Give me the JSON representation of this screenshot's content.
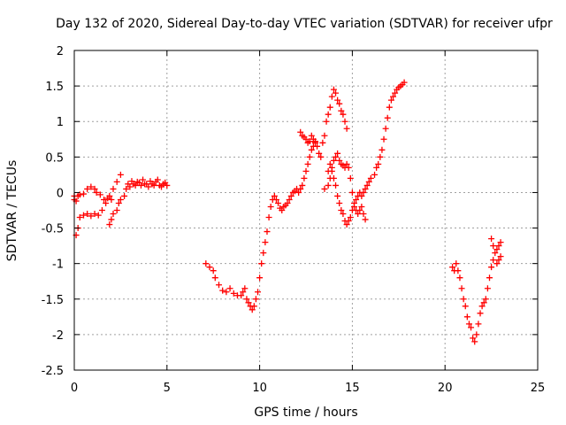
{
  "chart_data": {
    "type": "scatter",
    "title": "Day 132 of 2020, Sidereal Day-to-day VTEC variation (SDTVAR) for receiver ufpr",
    "xlabel": "GPS time / hours",
    "ylabel": "SDTVAR / TECUs",
    "xlim": [
      0,
      25
    ],
    "ylim": [
      -2.5,
      2
    ],
    "xticks": [
      "0",
      "5",
      "10",
      "15",
      "20",
      "25"
    ],
    "yticks": [
      "-2.5",
      "-2",
      "-1.5",
      "-1",
      "-0.5",
      "0",
      "0.5",
      "1",
      "1.5",
      "2"
    ],
    "grid": true,
    "marker": "plus",
    "color": "#ff0000",
    "series": [
      {
        "points": [
          [
            0.0,
            -0.1
          ],
          [
            0.1,
            -0.6
          ],
          [
            0.2,
            -0.5
          ],
          [
            0.3,
            -0.35
          ],
          [
            0.5,
            -0.32
          ],
          [
            0.7,
            -0.3
          ],
          [
            0.9,
            -0.33
          ],
          [
            1.1,
            -0.3
          ],
          [
            1.3,
            -0.32
          ],
          [
            1.5,
            -0.25
          ],
          [
            1.7,
            -0.15
          ],
          [
            1.9,
            -0.05
          ],
          [
            2.1,
            0.05
          ],
          [
            2.3,
            0.15
          ],
          [
            2.5,
            0.25
          ],
          [
            0.0,
            -0.05
          ],
          [
            0.1,
            -0.12
          ],
          [
            0.2,
            -0.05
          ],
          [
            0.3,
            -0.03
          ],
          [
            0.5,
            -0.02
          ],
          [
            0.7,
            0.05
          ],
          [
            0.9,
            0.08
          ],
          [
            1.1,
            0.05
          ],
          [
            1.2,
            0.0
          ],
          [
            1.4,
            -0.03
          ],
          [
            1.6,
            -0.1
          ],
          [
            1.8,
            -0.08
          ],
          [
            2.0,
            -0.1
          ],
          [
            1.9,
            -0.45
          ],
          [
            2.0,
            -0.38
          ],
          [
            2.1,
            -0.3
          ],
          [
            2.3,
            -0.25
          ],
          [
            2.4,
            -0.15
          ],
          [
            2.5,
            -0.1
          ],
          [
            2.7,
            -0.05
          ],
          [
            2.8,
            0.05
          ],
          [
            3.0,
            0.08
          ],
          [
            3.2,
            0.12
          ],
          [
            3.4,
            0.15
          ],
          [
            3.6,
            0.1
          ],
          [
            3.8,
            0.12
          ],
          [
            4.0,
            0.08
          ],
          [
            4.2,
            0.12
          ],
          [
            4.4,
            0.15
          ],
          [
            4.6,
            0.1
          ],
          [
            4.8,
            0.12
          ],
          [
            5.0,
            0.1
          ],
          [
            2.9,
            0.12
          ],
          [
            3.1,
            0.16
          ],
          [
            3.3,
            0.1
          ],
          [
            3.5,
            0.14
          ],
          [
            3.7,
            0.18
          ],
          [
            3.9,
            0.12
          ],
          [
            4.1,
            0.16
          ],
          [
            4.3,
            0.1
          ],
          [
            4.5,
            0.18
          ],
          [
            4.7,
            0.08
          ],
          [
            4.9,
            0.14
          ],
          [
            7.1,
            -1.0
          ],
          [
            7.3,
            -1.05
          ],
          [
            7.5,
            -1.1
          ],
          [
            7.6,
            -1.2
          ],
          [
            7.8,
            -1.3
          ],
          [
            8.0,
            -1.38
          ],
          [
            8.2,
            -1.4
          ],
          [
            8.4,
            -1.35
          ],
          [
            8.6,
            -1.42
          ],
          [
            8.8,
            -1.45
          ],
          [
            9.0,
            -1.45
          ],
          [
            9.1,
            -1.4
          ],
          [
            9.2,
            -1.35
          ],
          [
            9.3,
            -1.5
          ],
          [
            9.4,
            -1.55
          ],
          [
            9.5,
            -1.6
          ],
          [
            9.6,
            -1.65
          ],
          [
            9.7,
            -1.6
          ],
          [
            9.8,
            -1.5
          ],
          [
            9.9,
            -1.4
          ],
          [
            10.0,
            -1.2
          ],
          [
            10.1,
            -1.0
          ],
          [
            10.2,
            -0.85
          ],
          [
            10.3,
            -0.7
          ],
          [
            10.4,
            -0.55
          ],
          [
            10.5,
            -0.35
          ],
          [
            10.6,
            -0.2
          ],
          [
            10.7,
            -0.1
          ],
          [
            10.8,
            -0.05
          ],
          [
            10.9,
            -0.1
          ],
          [
            11.0,
            -0.15
          ],
          [
            11.1,
            -0.22
          ],
          [
            11.2,
            -0.25
          ],
          [
            11.3,
            -0.2
          ],
          [
            11.4,
            -0.18
          ],
          [
            11.5,
            -0.15
          ],
          [
            11.6,
            -0.1
          ],
          [
            11.7,
            -0.05
          ],
          [
            11.8,
            0.0
          ],
          [
            11.9,
            0.02
          ],
          [
            12.0,
            0.05
          ],
          [
            12.1,
            0.0
          ],
          [
            12.2,
            0.05
          ],
          [
            12.3,
            0.1
          ],
          [
            12.4,
            0.2
          ],
          [
            12.5,
            0.3
          ],
          [
            12.6,
            0.4
          ],
          [
            12.7,
            0.5
          ],
          [
            12.8,
            0.6
          ],
          [
            12.9,
            0.65
          ],
          [
            13.0,
            0.7
          ],
          [
            13.1,
            0.65
          ],
          [
            13.2,
            0.55
          ],
          [
            13.3,
            0.5
          ],
          [
            12.2,
            0.85
          ],
          [
            12.3,
            0.8
          ],
          [
            12.4,
            0.78
          ],
          [
            12.5,
            0.75
          ],
          [
            12.6,
            0.7
          ],
          [
            12.7,
            0.72
          ],
          [
            12.8,
            0.8
          ],
          [
            12.9,
            0.75
          ],
          [
            13.0,
            0.72
          ],
          [
            13.4,
            0.7
          ],
          [
            13.5,
            0.8
          ],
          [
            13.6,
            1.0
          ],
          [
            13.7,
            1.1
          ],
          [
            13.8,
            1.2
          ],
          [
            13.9,
            1.35
          ],
          [
            14.0,
            1.45
          ],
          [
            14.1,
            1.4
          ],
          [
            14.2,
            1.3
          ],
          [
            14.3,
            1.25
          ],
          [
            14.4,
            1.15
          ],
          [
            14.5,
            1.1
          ],
          [
            14.6,
            1.0
          ],
          [
            14.7,
            0.9
          ],
          [
            13.5,
            0.05
          ],
          [
            13.7,
            0.1
          ],
          [
            13.8,
            0.2
          ],
          [
            13.9,
            0.3
          ],
          [
            14.0,
            0.45
          ],
          [
            14.1,
            0.5
          ],
          [
            14.2,
            0.55
          ],
          [
            14.3,
            0.45
          ],
          [
            14.4,
            0.4
          ],
          [
            14.5,
            0.38
          ],
          [
            14.6,
            0.35
          ],
          [
            14.7,
            0.4
          ],
          [
            14.8,
            0.35
          ],
          [
            14.9,
            0.2
          ],
          [
            15.0,
            0.0
          ],
          [
            15.1,
            -0.15
          ],
          [
            15.2,
            -0.25
          ],
          [
            15.3,
            -0.3
          ],
          [
            15.4,
            -0.25
          ],
          [
            15.5,
            -0.2
          ],
          [
            15.6,
            -0.3
          ],
          [
            15.7,
            -0.38
          ],
          [
            13.7,
            0.3
          ],
          [
            13.8,
            0.4
          ],
          [
            13.9,
            0.35
          ],
          [
            14.0,
            0.2
          ],
          [
            14.1,
            0.1
          ],
          [
            14.2,
            -0.05
          ],
          [
            14.3,
            -0.15
          ],
          [
            14.4,
            -0.25
          ],
          [
            14.5,
            -0.3
          ],
          [
            14.6,
            -0.4
          ],
          [
            14.7,
            -0.45
          ],
          [
            14.8,
            -0.4
          ],
          [
            14.9,
            -0.35
          ],
          [
            15.0,
            -0.25
          ],
          [
            15.1,
            -0.2
          ],
          [
            15.2,
            -0.1
          ],
          [
            15.3,
            -0.05
          ],
          [
            15.4,
            0.0
          ],
          [
            15.5,
            -0.05
          ],
          [
            15.6,
            0.0
          ],
          [
            15.7,
            0.05
          ],
          [
            15.8,
            0.1
          ],
          [
            15.9,
            0.15
          ],
          [
            16.0,
            0.2
          ],
          [
            16.2,
            0.25
          ],
          [
            16.3,
            0.35
          ],
          [
            16.4,
            0.4
          ],
          [
            16.5,
            0.5
          ],
          [
            16.6,
            0.6
          ],
          [
            16.7,
            0.75
          ],
          [
            16.8,
            0.9
          ],
          [
            16.9,
            1.05
          ],
          [
            17.0,
            1.2
          ],
          [
            17.1,
            1.3
          ],
          [
            17.2,
            1.35
          ],
          [
            17.3,
            1.4
          ],
          [
            17.4,
            1.45
          ],
          [
            17.5,
            1.48
          ],
          [
            17.6,
            1.5
          ],
          [
            17.7,
            1.52
          ],
          [
            17.8,
            1.55
          ],
          [
            20.4,
            -1.05
          ],
          [
            20.5,
            -1.1
          ],
          [
            20.6,
            -1.0
          ],
          [
            20.7,
            -1.1
          ],
          [
            20.8,
            -1.2
          ],
          [
            20.9,
            -1.35
          ],
          [
            21.0,
            -1.5
          ],
          [
            21.1,
            -1.6
          ],
          [
            21.2,
            -1.75
          ],
          [
            21.3,
            -1.85
          ],
          [
            21.4,
            -1.9
          ],
          [
            21.5,
            -2.05
          ],
          [
            21.6,
            -2.1
          ],
          [
            21.7,
            -2.0
          ],
          [
            21.8,
            -1.85
          ],
          [
            21.9,
            -1.7
          ],
          [
            22.0,
            -1.6
          ],
          [
            22.1,
            -1.55
          ],
          [
            22.2,
            -1.5
          ],
          [
            22.3,
            -1.35
          ],
          [
            22.4,
            -1.2
          ],
          [
            22.5,
            -1.05
          ],
          [
            22.6,
            -0.95
          ],
          [
            22.7,
            -0.85
          ],
          [
            22.8,
            -0.8
          ],
          [
            22.9,
            -0.75
          ],
          [
            23.0,
            -0.7
          ],
          [
            23.0,
            -0.9
          ],
          [
            22.9,
            -0.95
          ],
          [
            22.8,
            -1.0
          ],
          [
            22.6,
            -0.75
          ],
          [
            22.5,
            -0.65
          ]
        ]
      }
    ]
  }
}
